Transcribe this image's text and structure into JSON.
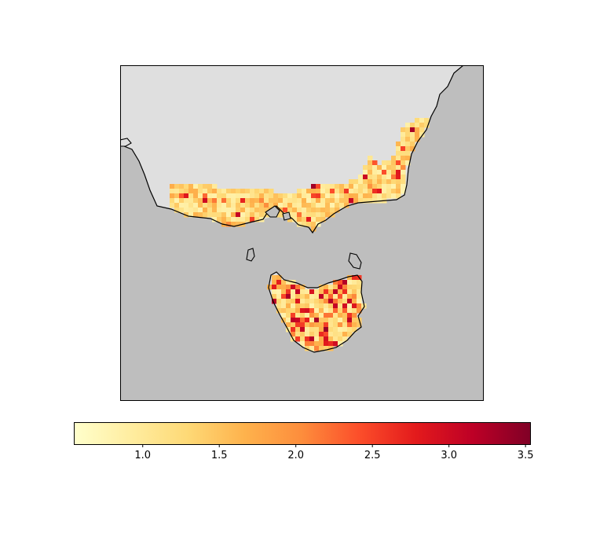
{
  "map": {
    "region": "South-eastern Australia and Tasmania",
    "projection_frame": "rectangular",
    "ocean_color": "#bebebe",
    "land_color": "#dfdfdf",
    "coastline_color": "#000000",
    "data_field": "gridded values over southern Victoria and Tasmania",
    "colormap": "YlOrRd"
  },
  "colorbar": {
    "orientation": "horizontal",
    "vmin": 0.55,
    "vmax": 3.53,
    "ticks": [
      "1.0",
      "1.5",
      "2.0",
      "2.5",
      "3.0",
      "3.5"
    ],
    "tick_values": [
      1.0,
      1.5,
      2.0,
      2.5,
      3.0,
      3.5
    ],
    "colors": [
      "#ffffcc",
      "#ffeda0",
      "#fed976",
      "#feb24c",
      "#fd8d3c",
      "#fc4e2a",
      "#e31a1c",
      "#bd0026",
      "#800026"
    ]
  }
}
